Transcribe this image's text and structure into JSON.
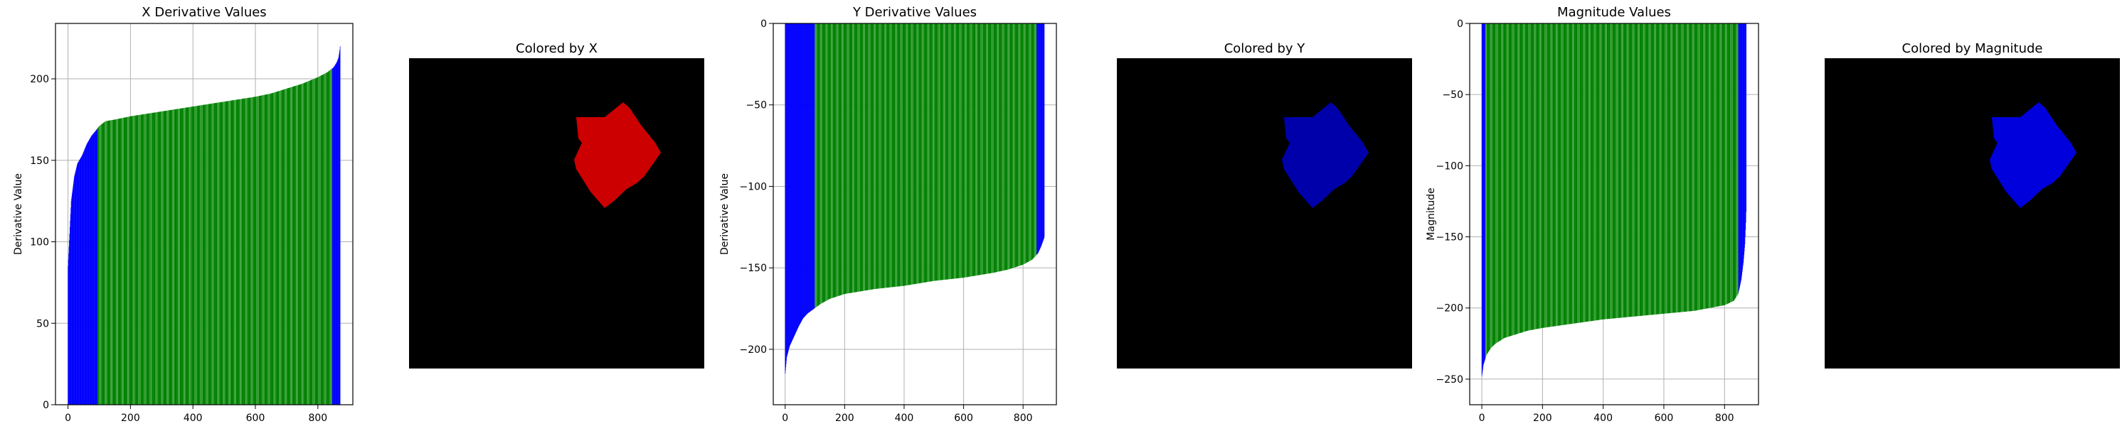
{
  "charts": {
    "x_chart": {
      "title": "X Derivative Values",
      "ylabel": "Derivative Value"
    },
    "y_chart": {
      "title": "Y Derivative Values",
      "ylabel": "Derivative Value"
    },
    "mag_chart": {
      "title": "Magnitude Values",
      "ylabel": "Magnitude"
    }
  },
  "images": {
    "x_image": {
      "title": "Colored by X",
      "shape_color": "#cc0000"
    },
    "y_image": {
      "title": "Colored by Y",
      "shape_color": "#0000aa"
    },
    "mag_image": {
      "title": "Colored by Magnitude",
      "shape_color": "#0000dd"
    }
  },
  "chart_data": [
    {
      "type": "bar",
      "title": "X Derivative Values",
      "xlabel": "",
      "ylabel": "Derivative Value",
      "n_points": 872,
      "xlim": [
        -40,
        912
      ],
      "ylim": [
        0,
        234
      ],
      "xticks": [
        0,
        200,
        400,
        600,
        800
      ],
      "yticks": [
        0,
        50,
        100,
        150,
        200
      ],
      "grid": true,
      "series": [
        {
          "x": [
            0,
            10,
            20,
            30,
            45,
            60,
            75,
            88,
            100,
            120,
            150,
            200,
            300,
            400,
            500,
            600,
            650,
            700,
            750,
            800,
            830,
            850,
            860,
            866,
            870,
            872
          ],
          "y": [
            85,
            125,
            140,
            148,
            153,
            160,
            165,
            168,
            171,
            174,
            175,
            177,
            180,
            183,
            186,
            189,
            191,
            194,
            197,
            201,
            204,
            207,
            210,
            213,
            218,
            222
          ]
        }
      ],
      "bar_colors": {
        "outlier": "#0000ff",
        "main": "#008000"
      },
      "main_range": [
        95,
        845
      ]
    },
    {
      "type": "bar",
      "title": "Y Derivative Values",
      "xlabel": "",
      "ylabel": "Derivative Value",
      "n_points": 872,
      "xlim": [
        -40,
        912
      ],
      "ylim": [
        -234,
        0
      ],
      "xticks": [
        0,
        200,
        400,
        600,
        800
      ],
      "yticks": [
        0,
        -50,
        -100,
        -150,
        -200
      ],
      "grid": true,
      "series": [
        {
          "x": [
            0,
            5,
            15,
            30,
            45,
            60,
            75,
            90,
            120,
            150,
            200,
            300,
            400,
            500,
            600,
            700,
            750,
            800,
            830,
            850,
            860,
            866,
            870,
            872
          ],
          "y": [
            -215,
            -205,
            -198,
            -192,
            -186,
            -181,
            -178,
            -176,
            -172,
            -169,
            -166,
            -163,
            -161,
            -158,
            -156,
            -153,
            -151,
            -148,
            -145,
            -141,
            -137,
            -134,
            -132,
            -130
          ]
        }
      ],
      "bar_colors": {
        "outlier": "#0000ff",
        "main": "#008000"
      },
      "main_range": [
        100,
        845
      ]
    },
    {
      "type": "bar",
      "title": "Magnitude Values",
      "xlabel": "",
      "ylabel": "Magnitude",
      "n_points": 872,
      "xlim": [
        -40,
        912
      ],
      "ylim": [
        -268,
        0
      ],
      "xticks": [
        0,
        200,
        400,
        600,
        800
      ],
      "yticks": [
        0,
        -50,
        -100,
        -150,
        -200,
        -250
      ],
      "grid": true,
      "series": [
        {
          "x": [
            0,
            5,
            15,
            30,
            45,
            60,
            75,
            90,
            120,
            150,
            200,
            300,
            400,
            500,
            600,
            700,
            750,
            800,
            830,
            845,
            855,
            862,
            867,
            870,
            872
          ],
          "y": [
            -248,
            -240,
            -233,
            -228,
            -225,
            -223,
            -221,
            -220,
            -218,
            -216,
            -214,
            -211,
            -208,
            -206,
            -204,
            -202,
            -200,
            -198,
            -195,
            -190,
            -180,
            -168,
            -155,
            -140,
            -125
          ]
        }
      ],
      "bar_colors": {
        "outlier": "#0000ff",
        "main": "#008000"
      },
      "main_range": [
        12,
        845
      ]
    }
  ]
}
